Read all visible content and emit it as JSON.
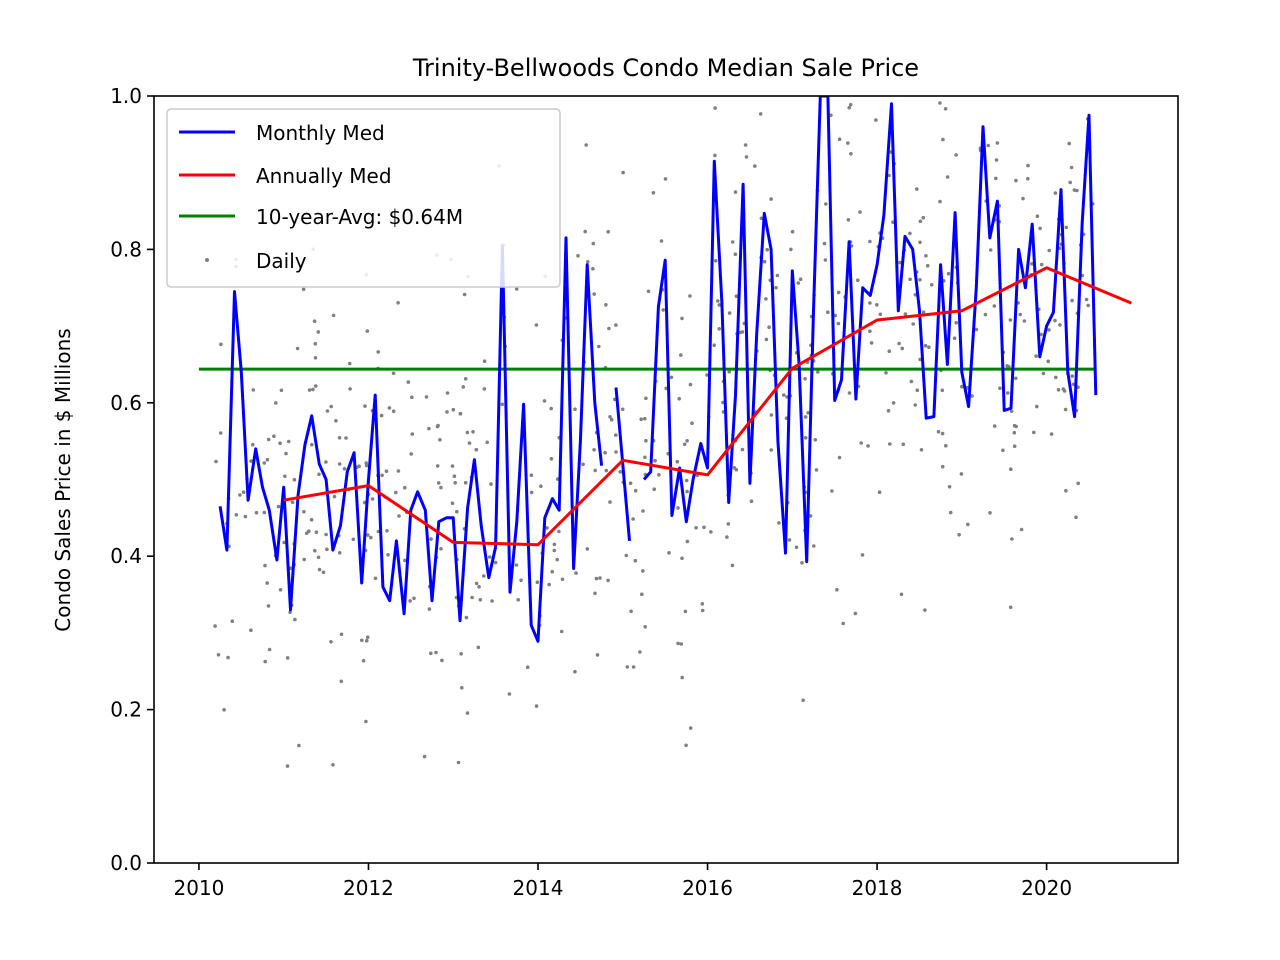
{
  "chart_data": {
    "type": "line",
    "title": "Trinity-Bellwoods Condo Median Sale Price",
    "xlabel": "",
    "ylabel": "Condo Sales Price in $ Millions",
    "xlim": [
      2009.47,
      2021.55
    ],
    "ylim": [
      0.0,
      1.0
    ],
    "x_ticks": [
      2010,
      2012,
      2014,
      2016,
      2018,
      2020
    ],
    "y_ticks": [
      0.0,
      0.2,
      0.4,
      0.6,
      0.8,
      1.0
    ],
    "x_tick_labels": [
      "2010",
      "2012",
      "2014",
      "2016",
      "2018",
      "2020"
    ],
    "y_tick_labels": [
      "0.0",
      "0.2",
      "0.4",
      "0.6",
      "0.8",
      "1.0"
    ],
    "grid": false,
    "legend_position": "upper-left",
    "series": [
      {
        "name": "Monthly Med",
        "kind": "line",
        "color": "#0000ff",
        "segments": [
          [
            [
              2010.25,
              0.465
            ],
            [
              2010.33,
              0.408
            ],
            [
              2010.42,
              0.745
            ],
            [
              2010.5,
              0.64
            ],
            [
              2010.58,
              0.473
            ],
            [
              2010.67,
              0.54
            ],
            [
              2010.75,
              0.49
            ],
            [
              2010.83,
              0.46
            ],
            [
              2010.92,
              0.395
            ],
            [
              2011.0,
              0.49
            ],
            [
              2011.08,
              0.33
            ],
            [
              2011.17,
              0.48
            ],
            [
              2011.25,
              0.545
            ],
            [
              2011.33,
              0.583
            ],
            [
              2011.42,
              0.52
            ],
            [
              2011.5,
              0.5
            ],
            [
              2011.58,
              0.408
            ],
            [
              2011.67,
              0.44
            ],
            [
              2011.75,
              0.51
            ],
            [
              2011.83,
              0.535
            ],
            [
              2011.92,
              0.365
            ],
            [
              2012.0,
              0.5
            ],
            [
              2012.08,
              0.61
            ],
            [
              2012.17,
              0.36
            ],
            [
              2012.25,
              0.342
            ],
            [
              2012.33,
              0.42
            ],
            [
              2012.42,
              0.325
            ],
            [
              2012.5,
              0.46
            ],
            [
              2012.58,
              0.484
            ],
            [
              2012.67,
              0.46
            ],
            [
              2012.75,
              0.342
            ],
            [
              2012.83,
              0.445
            ],
            [
              2012.92,
              0.45
            ],
            [
              2013.0,
              0.45
            ],
            [
              2013.08,
              0.316
            ],
            [
              2013.17,
              0.463
            ],
            [
              2013.25,
              0.526
            ],
            [
              2013.33,
              0.44
            ],
            [
              2013.42,
              0.372
            ],
            [
              2013.5,
              0.412
            ],
            [
              2013.58,
              0.805
            ],
            [
              2013.67,
              0.353
            ],
            [
              2013.75,
              0.445
            ],
            [
              2013.83,
              0.598
            ],
            [
              2013.92,
              0.31
            ],
            [
              2014.0,
              0.289
            ],
            [
              2014.08,
              0.45
            ],
            [
              2014.17,
              0.475
            ],
            [
              2014.25,
              0.46
            ],
            [
              2014.33,
              0.815
            ],
            [
              2014.42,
              0.384
            ],
            [
              2014.5,
              0.55
            ],
            [
              2014.58,
              0.78
            ],
            [
              2014.67,
              0.6
            ],
            [
              2014.75,
              0.518
            ]
          ],
          [
            [
              2014.92,
              0.62
            ],
            [
              2015.0,
              0.52
            ],
            [
              2015.08,
              0.42
            ]
          ],
          [
            [
              2015.25,
              0.5
            ],
            [
              2015.33,
              0.51
            ],
            [
              2015.42,
              0.725
            ],
            [
              2015.5,
              0.786
            ],
            [
              2015.58,
              0.453
            ],
            [
              2015.67,
              0.515
            ],
            [
              2015.75,
              0.445
            ],
            [
              2015.83,
              0.5
            ],
            [
              2015.92,
              0.547
            ],
            [
              2016.0,
              0.515
            ],
            [
              2016.08,
              0.915
            ],
            [
              2016.17,
              0.73
            ],
            [
              2016.25,
              0.47
            ],
            [
              2016.33,
              0.61
            ],
            [
              2016.42,
              0.885
            ],
            [
              2016.5,
              0.495
            ],
            [
              2016.58,
              0.69
            ],
            [
              2016.67,
              0.847
            ],
            [
              2016.75,
              0.8
            ],
            [
              2016.83,
              0.55
            ],
            [
              2016.92,
              0.404
            ],
            [
              2017.0,
              0.772
            ],
            [
              2017.08,
              0.65
            ],
            [
              2017.17,
              0.393
            ],
            [
              2017.25,
              0.72
            ],
            [
              2017.33,
              1.0
            ],
            [
              2017.42,
              1.0
            ],
            [
              2017.5,
              0.603
            ],
            [
              2017.58,
              0.63
            ],
            [
              2017.67,
              0.81
            ],
            [
              2017.75,
              0.605
            ],
            [
              2017.83,
              0.75
            ],
            [
              2017.92,
              0.74
            ],
            [
              2018.0,
              0.78
            ],
            [
              2018.08,
              0.845
            ],
            [
              2018.17,
              0.99
            ],
            [
              2018.25,
              0.72
            ],
            [
              2018.33,
              0.817
            ],
            [
              2018.42,
              0.8
            ],
            [
              2018.5,
              0.72
            ],
            [
              2018.58,
              0.58
            ],
            [
              2018.67,
              0.582
            ],
            [
              2018.75,
              0.78
            ],
            [
              2018.83,
              0.65
            ],
            [
              2018.92,
              0.848
            ],
            [
              2019.0,
              0.64
            ],
            [
              2019.08,
              0.595
            ],
            [
              2019.17,
              0.75
            ],
            [
              2019.25,
              0.96
            ],
            [
              2019.33,
              0.815
            ],
            [
              2019.42,
              0.863
            ],
            [
              2019.5,
              0.59
            ],
            [
              2019.58,
              0.593
            ],
            [
              2019.67,
              0.8
            ],
            [
              2019.75,
              0.75
            ],
            [
              2019.83,
              0.833
            ],
            [
              2019.92,
              0.66
            ],
            [
              2020.0,
              0.7
            ],
            [
              2020.08,
              0.718
            ],
            [
              2020.17,
              0.878
            ],
            [
              2020.25,
              0.64
            ],
            [
              2020.33,
              0.582
            ],
            [
              2020.42,
              0.835
            ],
            [
              2020.5,
              0.975
            ],
            [
              2020.58,
              0.61
            ]
          ]
        ]
      },
      {
        "name": "Annually Med",
        "kind": "line",
        "color": "#ff0000",
        "points": [
          [
            2011,
            0.473
          ],
          [
            2012,
            0.492
          ],
          [
            2013,
            0.418
          ],
          [
            2014,
            0.415
          ],
          [
            2015,
            0.525
          ],
          [
            2016,
            0.506
          ],
          [
            2017,
            0.645
          ],
          [
            2018,
            0.708
          ],
          [
            2019,
            0.72
          ],
          [
            2020,
            0.776
          ],
          [
            2021,
            0.73
          ]
        ]
      },
      {
        "name": "10-year-Avg: $0.64M",
        "kind": "line",
        "color": "#008000",
        "points": [
          [
            2010.0,
            0.644
          ],
          [
            2020.58,
            0.644
          ]
        ]
      },
      {
        "name": "Daily",
        "kind": "scatter",
        "color": "#808080",
        "generated": true,
        "count": 640,
        "x_range": [
          2010.17,
          2020.6
        ],
        "note_source": "scatter drawn from the same monthly trend with spread"
      }
    ]
  }
}
